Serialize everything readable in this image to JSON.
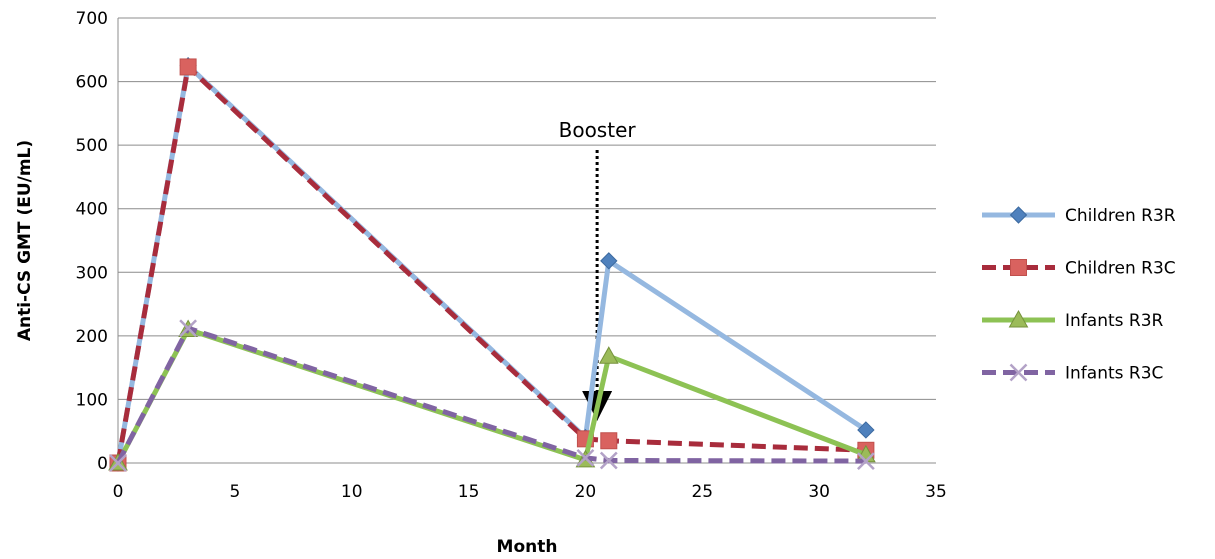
{
  "chart_data": {
    "type": "line",
    "title": "",
    "xlabel": "Month",
    "ylabel": "Anti-CS GMT (EU/mL)",
    "xlim": [
      0,
      35
    ],
    "ylim": [
      0,
      700
    ],
    "x_ticks": [
      0,
      5,
      10,
      15,
      20,
      25,
      30,
      35
    ],
    "y_ticks": [
      0,
      100,
      200,
      300,
      400,
      500,
      600,
      700
    ],
    "x_tick_labels": [
      "0",
      "5",
      "10",
      "15",
      "20",
      "25",
      "30",
      "35"
    ],
    "y_tick_labels": [
      "0",
      "100",
      "200",
      "300",
      "400",
      "500",
      "600",
      "700"
    ],
    "grid": "horizontal",
    "legend_position": "right",
    "annotation": {
      "text": "Booster",
      "x": 20.5
    },
    "series": [
      {
        "name": "Children R3R",
        "color": "#95b8e0",
        "marker_color": "#4f81bd",
        "marker": "diamond",
        "dash": "solid",
        "points": [
          [
            0,
            0
          ],
          [
            3,
            625
          ],
          [
            20,
            40
          ],
          [
            21,
            318
          ],
          [
            32,
            52
          ]
        ]
      },
      {
        "name": "Children R3C",
        "color": "#a82c3c",
        "marker_color": "#d9625f",
        "marker": "square",
        "dash": "dashed",
        "points": [
          [
            0,
            0
          ],
          [
            3,
            623
          ],
          [
            20,
            38
          ],
          [
            21,
            35
          ],
          [
            32,
            20
          ]
        ]
      },
      {
        "name": "Infants R3R",
        "color": "#8dc254",
        "marker_color": "#9bbb59",
        "marker": "triangle",
        "dash": "solid",
        "points": [
          [
            0,
            0
          ],
          [
            3,
            210
          ],
          [
            20,
            5
          ],
          [
            21,
            168
          ],
          [
            32,
            13
          ]
        ]
      },
      {
        "name": "Infants R3C",
        "color": "#8064a2",
        "marker_color": "#b3a2c7",
        "marker": "x",
        "dash": "dashed",
        "points": [
          [
            0,
            0
          ],
          [
            3,
            212
          ],
          [
            20,
            8
          ],
          [
            21,
            4
          ],
          [
            32,
            3
          ]
        ]
      }
    ]
  }
}
